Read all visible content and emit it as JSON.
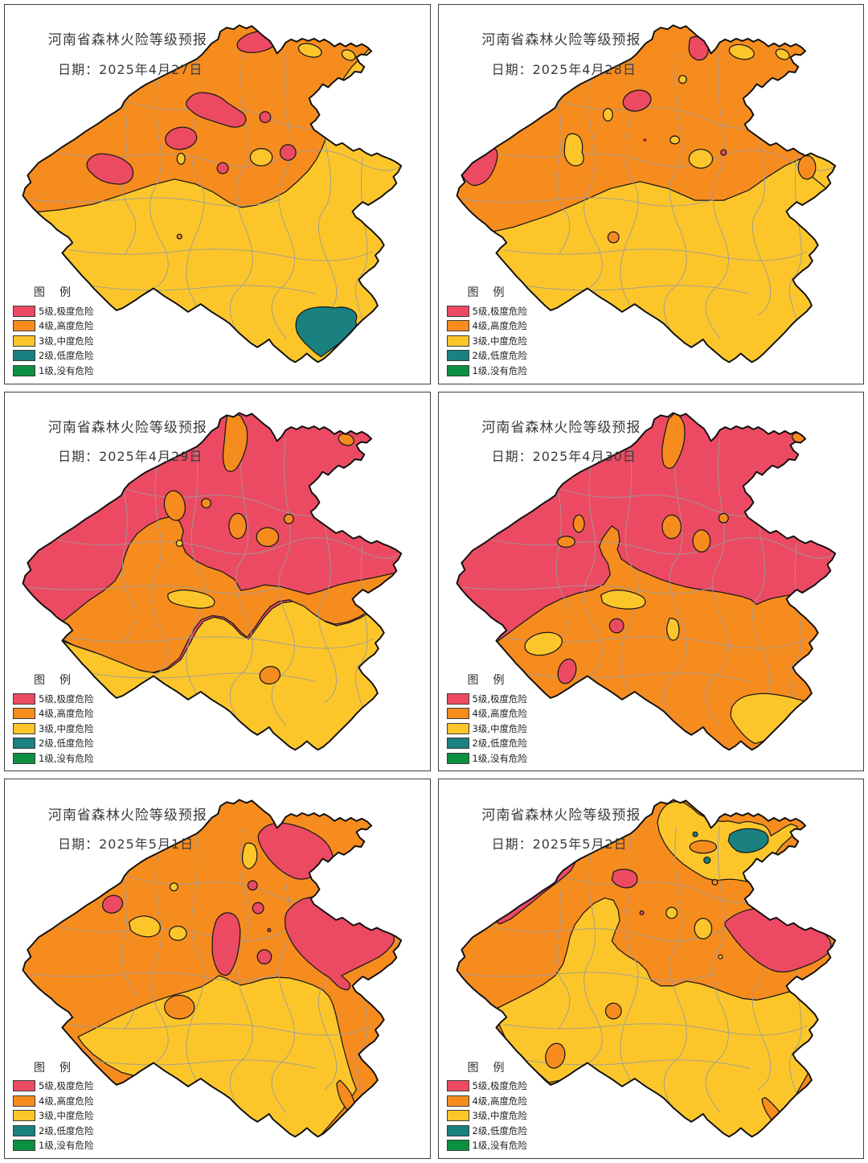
{
  "page": {
    "background": "#ffffff",
    "panel_border": "#3f3f3f"
  },
  "panels": [
    {
      "title": "河南省森林火险等级预报",
      "date_label": "日期：2025年4月27日"
    },
    {
      "title": "河南省森林火险等级预报",
      "date_label": "日期：2025年4月28日"
    },
    {
      "title": "河南省森林火险等级预报",
      "date_label": "日期：2025年4月29日"
    },
    {
      "title": "河南省森林火险等级预报",
      "date_label": "日期：2025年4月30日"
    },
    {
      "title": "河南省森林火险等级预报",
      "date_label": "日期：2025年5月1日"
    },
    {
      "title": "河南省森林火险等级预报",
      "date_label": "日期：2025年5月2日"
    }
  ],
  "legend": {
    "title": "图　例",
    "items": [
      {
        "label": "5级,极度危险",
        "color": "#EC4A62",
        "level": 5
      },
      {
        "label": "4级,高度危险",
        "color": "#F78C1E",
        "level": 4
      },
      {
        "label": "3级,中度危险",
        "color": "#FCC62B",
        "level": 3
      },
      {
        "label": "2级,低度危险",
        "color": "#1A8080",
        "level": 2
      },
      {
        "label": "1级,没有危险",
        "color": "#0A9040",
        "level": 1
      }
    ]
  },
  "map": {
    "region_name": "河南省",
    "boundary_color": "#101010",
    "county_line_color": "#9b9b9b"
  }
}
